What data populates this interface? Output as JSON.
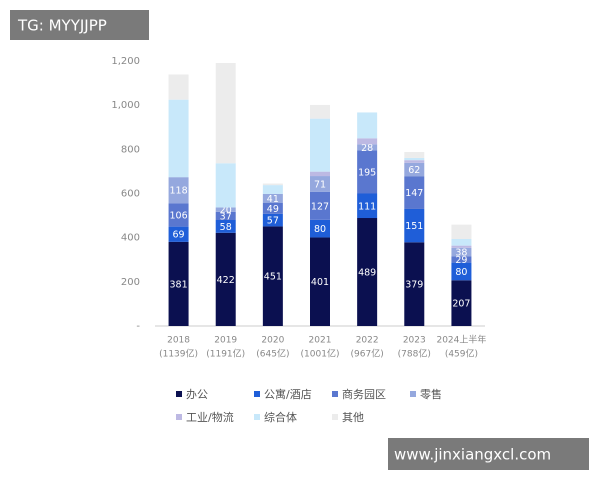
{
  "chart_data": {
    "type": "stacked-bar",
    "categories": [
      "2018",
      "2019",
      "2020",
      "2021",
      "2022",
      "2023",
      "2024上半年"
    ],
    "category_totals": [
      "(1139亿)",
      "(1191亿)",
      "(645亿)",
      "(1001亿)",
      "(967亿)",
      "(788亿)",
      "(459亿)"
    ],
    "series": [
      {
        "name": "办公",
        "color": "#0b1050",
        "values": [
          381,
          422,
          451,
          401,
          489,
          379,
          207
        ]
      },
      {
        "name": "公寓/酒店",
        "color": "#1f5ed8",
        "values": [
          69,
          58,
          57,
          80,
          111,
          151,
          80
        ]
      },
      {
        "name": "商务园区",
        "color": "#5a77cf",
        "values": [
          106,
          37,
          49,
          127,
          195,
          147,
          29
        ]
      },
      {
        "name": "零售",
        "color": "#95a8de",
        "values": [
          118,
          20,
          41,
          71,
          28,
          62,
          38
        ]
      },
      {
        "name": "工业/物流",
        "color": "#bdb9e3",
        "values": [
          0,
          0,
          0,
          20,
          27,
          12,
          10
        ]
      },
      {
        "name": "综合体",
        "color": "#c8e8fa",
        "values": [
          351,
          200,
          40,
          240,
          117,
          10,
          30
        ]
      },
      {
        "name": "其他",
        "color": "#ececec",
        "values": [
          114,
          454,
          7,
          62,
          0,
          27,
          65
        ]
      }
    ],
    "labeled_series": 4,
    "ylim": [
      0,
      1200
    ],
    "yticks": [
      {
        "value": 0,
        "label": "-"
      },
      200,
      400,
      600,
      800,
      {
        "value": 1000,
        "label": "1,000"
      },
      {
        "value": 1200,
        "label": "1,200"
      }
    ]
  },
  "watermarks": [
    "TG: MYYJJPP",
    "www.jinxiangxcl.com"
  ]
}
